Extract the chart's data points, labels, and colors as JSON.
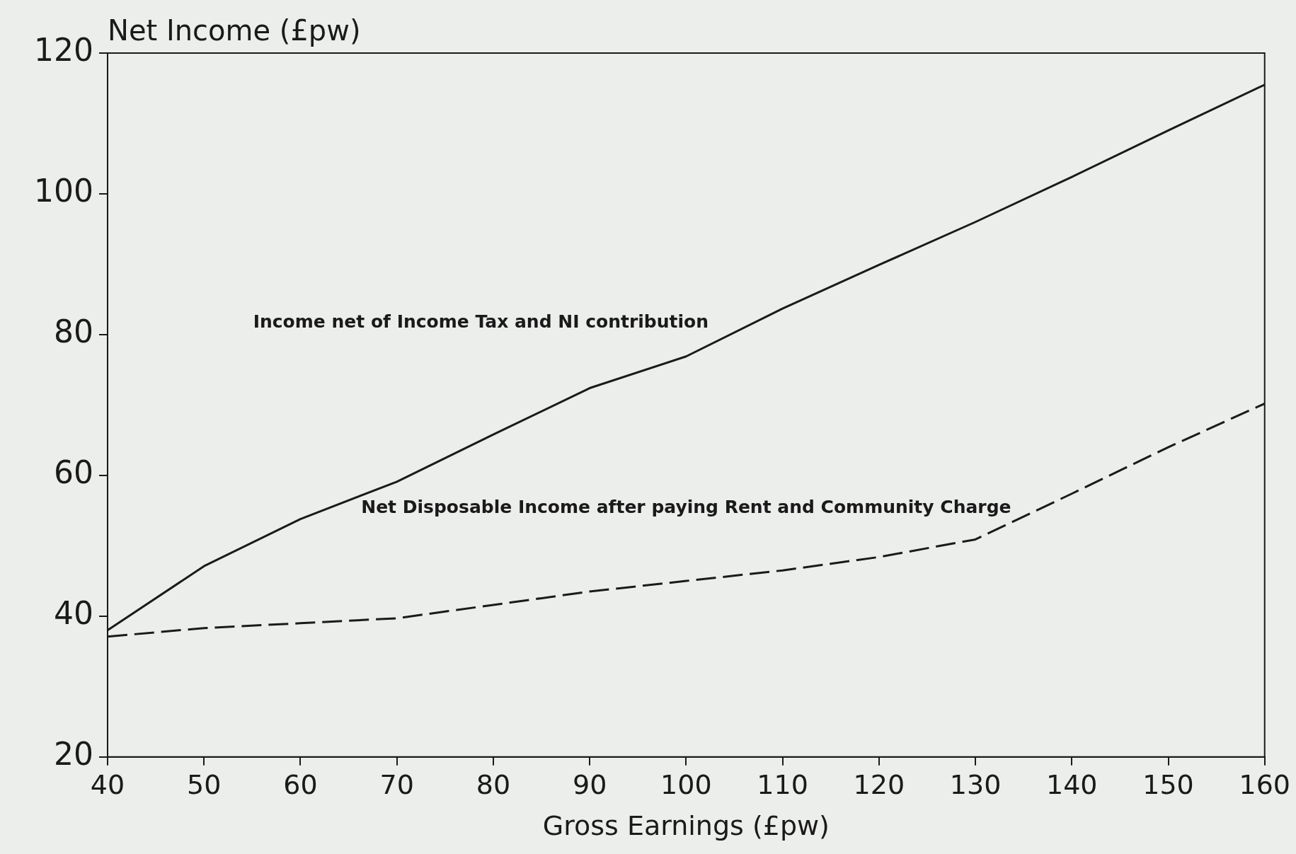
{
  "chart_data": {
    "type": "line",
    "xlabel": "Gross Earnings (£pw)",
    "ylabel": "Net Income (£pw)",
    "x": [
      40,
      50,
      60,
      70,
      80,
      90,
      100,
      110,
      120,
      130,
      140,
      150,
      160
    ],
    "series": [
      {
        "name": "Income net of Income Tax and NI contribution",
        "color": "#1a1a1a",
        "line_style": "solid",
        "values": [
          38,
          47.1,
          53.8,
          59.1,
          65.8,
          72.4,
          76.9,
          83.7,
          89.9,
          96,
          102.4,
          109,
          115.5
        ]
      },
      {
        "name": "Net Disposable Income after paying Rent and Community Charge",
        "color": "#1a1a1a",
        "line_style": "dashed",
        "values": [
          37.1,
          38.3,
          39,
          39.7,
          41.6,
          43.5,
          45,
          46.5,
          48.4,
          50.9,
          57.4,
          64,
          70.2
        ]
      }
    ],
    "xlim": [
      40,
      160
    ],
    "xticks": [
      40,
      50,
      60,
      70,
      80,
      90,
      100,
      110,
      120,
      130,
      140,
      150,
      160
    ],
    "ylim": [
      20,
      120
    ],
    "yticks": [
      20,
      40,
      60,
      80,
      100,
      120
    ],
    "grid": false,
    "legend": false,
    "marker": "none"
  }
}
